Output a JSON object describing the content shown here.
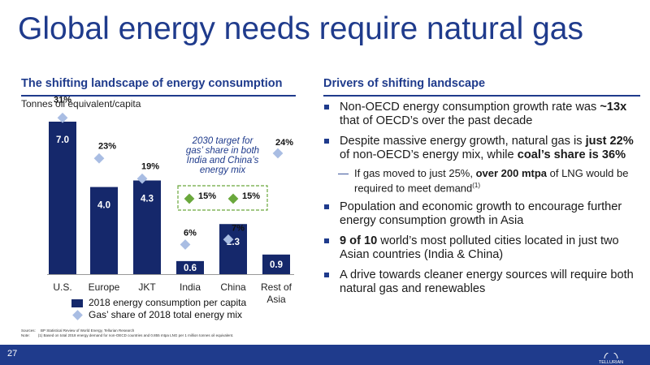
{
  "title": "Global energy needs require natural gas",
  "left_header": "The shifting landscape of energy consumption",
  "right_header": "Drivers of shifting landscape",
  "unit_label": "Tonnes oil equivalent/capita",
  "chart_data": {
    "type": "bar",
    "categories": [
      "U.S.",
      "Europe",
      "JKT",
      "India",
      "China",
      "Rest of Asia"
    ],
    "series": [
      {
        "name": "2018 energy consumption per capita",
        "values": [
          7.0,
          4.0,
          4.3,
          0.6,
          2.3,
          0.9
        ],
        "labels": [
          "7.0",
          "4.0",
          "4.3",
          "0.6",
          "2.3",
          "0.9"
        ]
      },
      {
        "name": "Gas’ share of 2018 total energy mix",
        "values": [
          31,
          23,
          19,
          6,
          7,
          24
        ],
        "labels": [
          "31%",
          "23%",
          "19%",
          "6%",
          "7%",
          "24%"
        ]
      }
    ],
    "target_box": {
      "label": "2030 target for gas’ share in both India and China’s energy mix",
      "values": [
        "15%",
        "15%"
      ]
    },
    "colors": {
      "bar": "#15286b",
      "marker": "#a9bde3",
      "target_marker": "#6aa83c"
    }
  },
  "bullets": [
    {
      "parts": [
        {
          "t": "Non-OECD energy consumption growth rate was "
        },
        {
          "t": "~13x",
          "b": true
        },
        {
          "t": " that of OECD’s over the past decade"
        }
      ]
    },
    {
      "parts": [
        {
          "t": "Despite massive energy growth, natural gas is "
        },
        {
          "t": "just 22%",
          "b": true
        },
        {
          "t": " of non-OECD’s energy mix, while "
        },
        {
          "t": "coal’s share is 36%",
          "b": true
        }
      ]
    }
  ],
  "sub_bullet": {
    "dash": "—",
    "text_a": "If gas moved to just 25%, ",
    "bold": "over 200 mtpa",
    "text_b": " of LNG would be required to meet demand",
    "sup": "(1)"
  },
  "bullets2": [
    {
      "parts": [
        {
          "t": "Population and economic growth to encourage further energy consumption growth in Asia"
        }
      ]
    },
    {
      "parts": [
        {
          "t": "9 of 10",
          "b": true
        },
        {
          "t": " world’s most polluted cities located in just two Asian countries (India & China)"
        }
      ]
    },
    {
      "parts": [
        {
          "t": "A drive towards cleaner energy sources will require both natural gas and renewables"
        }
      ]
    }
  ],
  "notes": {
    "sources_label": "Sources:",
    "sources": "BP Statistical Review of World Energy, Tellurian Research",
    "note_label": "Note:",
    "note": "(1)    Based on total 2018 energy demand for non-OECD countries and 0.855 mtpa LNG per 1 million tonnes oil equivalent."
  },
  "page_number": "27",
  "logo_text": "TELLURIAN"
}
